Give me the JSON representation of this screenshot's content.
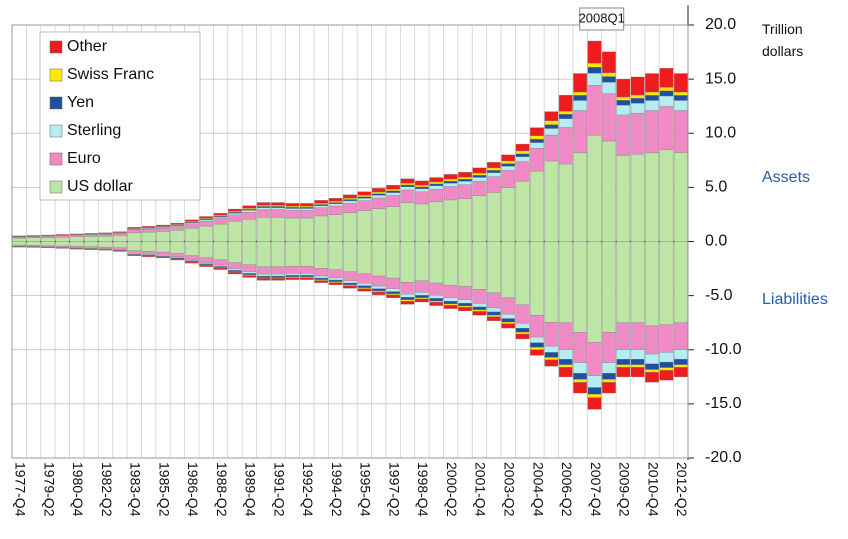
{
  "chart_data": {
    "type": "stacked-bar",
    "y_label": "Trillion dollars",
    "annotations": {
      "peak": "2008Q1",
      "assets": "Assets",
      "liabilities": "Liabilities"
    },
    "categories": [
      "1977-Q4",
      null,
      "1979-Q2",
      null,
      "1980-Q4",
      null,
      "1982-Q2",
      null,
      "1983-Q4",
      null,
      "1985-Q2",
      null,
      "1986-Q4",
      null,
      "1988-Q2",
      null,
      "1989-Q4",
      null,
      "1991-Q2",
      null,
      "1992-Q4",
      null,
      "1994-Q2",
      null,
      "1995-Q4",
      null,
      "1997-Q2",
      null,
      "1998-Q4",
      null,
      "2000-Q2",
      null,
      "2001-Q4",
      null,
      "2003-Q2",
      null,
      "2004-Q4",
      null,
      "2006-Q2",
      null,
      "2007-Q4",
      null,
      "2009-Q2",
      null,
      "2010-Q4",
      null,
      "2012-Q2"
    ],
    "series": [
      {
        "name": "US dollar",
        "color": "#bde5a6",
        "values": [
          0.31,
          0.34,
          0.37,
          0.4,
          0.43,
          0.47,
          0.5,
          0.56,
          0.81,
          0.87,
          0.93,
          1.05,
          1.24,
          1.43,
          1.61,
          1.86,
          2.05,
          2.23,
          2.23,
          2.17,
          2.17,
          2.36,
          2.48,
          2.67,
          2.85,
          3.04,
          3.22,
          3.6,
          3.47,
          3.66,
          3.84,
          3.97,
          4.22,
          4.53,
          4.96,
          5.58,
          6.51,
          7.44,
          7.16,
          8.22,
          9.81,
          9.28,
          7.95,
          8.06,
          8.22,
          8.48,
          8.22
        ],
        "liabilities": [
          -0.33,
          -0.36,
          -0.39,
          -0.42,
          -0.46,
          -0.49,
          -0.52,
          -0.59,
          -0.85,
          -0.91,
          -0.98,
          -1.11,
          -1.3,
          -1.5,
          -1.69,
          -1.95,
          -2.15,
          -2.34,
          -2.34,
          -2.28,
          -2.28,
          -2.47,
          -2.6,
          -2.8,
          -2.99,
          -3.19,
          -3.38,
          -3.77,
          -3.64,
          -3.84,
          -4.03,
          -4.16,
          -4.42,
          -4.75,
          -5.2,
          -5.85,
          -6.83,
          -7.48,
          -7.5,
          -8.4,
          -9.3,
          -8.4,
          -7.5,
          -7.5,
          -7.8,
          -7.68,
          -7.5
        ]
      },
      {
        "name": "Euro",
        "color": "#f08ac6",
        "values": [
          0.1,
          0.11,
          0.12,
          0.13,
          0.14,
          0.15,
          0.16,
          0.18,
          0.26,
          0.28,
          0.3,
          0.34,
          0.4,
          0.46,
          0.52,
          0.6,
          0.66,
          0.72,
          0.72,
          0.7,
          0.7,
          0.76,
          0.8,
          0.86,
          0.92,
          0.98,
          1.04,
          1.16,
          1.12,
          1.18,
          1.24,
          1.28,
          1.36,
          1.46,
          1.6,
          1.8,
          2.1,
          2.4,
          3.38,
          3.88,
          4.63,
          4.38,
          3.75,
          3.8,
          3.88,
          4.0,
          3.88
        ],
        "liabilities": [
          -0.1,
          -0.1,
          -0.11,
          -0.12,
          -0.13,
          -0.14,
          -0.15,
          -0.17,
          -0.25,
          -0.27,
          -0.29,
          -0.32,
          -0.38,
          -0.44,
          -0.49,
          -0.57,
          -0.63,
          -0.68,
          -0.68,
          -0.67,
          -0.67,
          -0.72,
          -0.76,
          -0.82,
          -0.87,
          -0.93,
          -0.99,
          -1.1,
          -1.06,
          -1.12,
          -1.18,
          -1.22,
          -1.29,
          -1.39,
          -1.52,
          -1.71,
          -2.0,
          -2.19,
          -2.5,
          -2.8,
          -3.1,
          -2.8,
          -2.5,
          -2.5,
          -2.6,
          -2.56,
          -2.5
        ]
      },
      {
        "name": "Sterling",
        "color": "#b4eef2",
        "values": [
          0.03,
          0.03,
          0.03,
          0.03,
          0.04,
          0.04,
          0.04,
          0.05,
          0.07,
          0.07,
          0.08,
          0.09,
          0.1,
          0.12,
          0.13,
          0.15,
          0.17,
          0.18,
          0.18,
          0.18,
          0.18,
          0.19,
          0.2,
          0.22,
          0.23,
          0.25,
          0.26,
          0.29,
          0.28,
          0.3,
          0.31,
          0.32,
          0.34,
          0.37,
          0.4,
          0.45,
          0.53,
          0.6,
          0.81,
          0.93,
          1.11,
          1.05,
          0.9,
          0.91,
          0.93,
          0.96,
          0.93
        ],
        "liabilities": [
          -0.03,
          -0.03,
          -0.03,
          -0.03,
          -0.04,
          -0.04,
          -0.04,
          -0.05,
          -0.07,
          -0.07,
          -0.08,
          -0.09,
          -0.1,
          -0.12,
          -0.13,
          -0.15,
          -0.17,
          -0.18,
          -0.18,
          -0.18,
          -0.18,
          -0.19,
          -0.2,
          -0.22,
          -0.23,
          -0.25,
          -0.26,
          -0.29,
          -0.28,
          -0.3,
          -0.31,
          -0.32,
          -0.34,
          -0.37,
          -0.4,
          -0.45,
          -0.53,
          -0.58,
          -0.88,
          -0.98,
          -1.09,
          -0.98,
          -0.88,
          -0.88,
          -0.91,
          -0.9,
          -0.88
        ]
      },
      {
        "name": "Yen",
        "color": "#1f4f9e",
        "values": [
          0.02,
          0.02,
          0.02,
          0.02,
          0.02,
          0.02,
          0.02,
          0.03,
          0.04,
          0.04,
          0.05,
          0.05,
          0.06,
          0.07,
          0.08,
          0.09,
          0.1,
          0.11,
          0.11,
          0.11,
          0.11,
          0.11,
          0.12,
          0.13,
          0.14,
          0.15,
          0.16,
          0.17,
          0.17,
          0.18,
          0.19,
          0.19,
          0.2,
          0.22,
          0.24,
          0.27,
          0.32,
          0.36,
          0.41,
          0.47,
          0.56,
          0.53,
          0.45,
          0.46,
          0.47,
          0.48,
          0.47
        ],
        "liabilities": [
          -0.02,
          -0.02,
          -0.02,
          -0.03,
          -0.03,
          -0.03,
          -0.03,
          -0.04,
          -0.05,
          -0.06,
          -0.06,
          -0.07,
          -0.08,
          -0.09,
          -0.1,
          -0.12,
          -0.13,
          -0.14,
          -0.14,
          -0.14,
          -0.14,
          -0.15,
          -0.16,
          -0.17,
          -0.18,
          -0.2,
          -0.21,
          -0.23,
          -0.22,
          -0.24,
          -0.25,
          -0.26,
          -0.27,
          -0.29,
          -0.32,
          -0.36,
          -0.42,
          -0.46,
          -0.5,
          -0.56,
          -0.62,
          -0.56,
          -0.5,
          -0.5,
          -0.52,
          -0.51,
          -0.5
        ]
      },
      {
        "name": "Swiss Franc",
        "color": "#ffe800",
        "values": [
          0.02,
          0.02,
          0.02,
          0.02,
          0.02,
          0.02,
          0.02,
          0.03,
          0.04,
          0.04,
          0.05,
          0.05,
          0.06,
          0.07,
          0.08,
          0.09,
          0.1,
          0.11,
          0.11,
          0.11,
          0.11,
          0.11,
          0.12,
          0.13,
          0.14,
          0.15,
          0.16,
          0.17,
          0.17,
          0.18,
          0.19,
          0.19,
          0.2,
          0.22,
          0.24,
          0.27,
          0.32,
          0.36,
          0.27,
          0.31,
          0.37,
          0.35,
          0.3,
          0.3,
          0.31,
          0.32,
          0.31
        ],
        "liabilities": [
          -0.01,
          -0.01,
          -0.01,
          -0.01,
          -0.01,
          -0.02,
          -0.02,
          -0.02,
          -0.03,
          -0.03,
          -0.03,
          -0.03,
          -0.04,
          -0.05,
          -0.05,
          -0.06,
          -0.07,
          -0.07,
          -0.07,
          -0.07,
          -0.07,
          -0.08,
          -0.08,
          -0.09,
          -0.09,
          -0.1,
          -0.1,
          -0.12,
          -0.11,
          -0.12,
          -0.12,
          -0.13,
          -0.14,
          -0.15,
          -0.16,
          -0.18,
          -0.21,
          -0.23,
          -0.25,
          -0.28,
          -0.31,
          -0.28,
          -0.25,
          -0.25,
          -0.26,
          -0.26,
          -0.25
        ]
      },
      {
        "name": "Other",
        "color": "#ee1c1c",
        "values": [
          0.04,
          0.04,
          0.04,
          0.05,
          0.05,
          0.05,
          0.06,
          0.06,
          0.09,
          0.1,
          0.11,
          0.12,
          0.14,
          0.16,
          0.18,
          0.21,
          0.23,
          0.25,
          0.25,
          0.25,
          0.25,
          0.27,
          0.28,
          0.3,
          0.32,
          0.34,
          0.36,
          0.41,
          0.39,
          0.41,
          0.43,
          0.45,
          0.48,
          0.51,
          0.56,
          0.63,
          0.74,
          0.84,
          1.49,
          1.71,
          2.04,
          1.93,
          1.65,
          1.67,
          1.71,
          1.76,
          1.71
        ],
        "liabilities": [
          -0.03,
          -0.03,
          -0.03,
          -0.03,
          -0.04,
          -0.04,
          -0.04,
          -0.05,
          -0.07,
          -0.07,
          -0.08,
          -0.09,
          -0.1,
          -0.12,
          -0.13,
          -0.15,
          -0.17,
          -0.18,
          -0.18,
          -0.18,
          -0.18,
          -0.19,
          -0.2,
          -0.22,
          -0.23,
          -0.25,
          -0.26,
          -0.29,
          -0.28,
          -0.3,
          -0.31,
          -0.32,
          -0.34,
          -0.37,
          -0.4,
          -0.45,
          -0.53,
          -0.58,
          -0.88,
          -0.98,
          -1.09,
          -0.98,
          -0.88,
          -0.88,
          -0.91,
          -0.9,
          -0.88
        ]
      }
    ],
    "ylim": [
      -20,
      20
    ],
    "yticks": [
      {
        "value": -20,
        "label": "-20.0"
      },
      {
        "value": -15,
        "label": "-15.0"
      },
      {
        "value": -10,
        "label": "-10.0"
      },
      {
        "value": -5,
        "label": "-5.0"
      },
      {
        "value": 0,
        "label": "0.0"
      },
      {
        "value": 5,
        "label": "5.0"
      },
      {
        "value": 10,
        "label": "10.0"
      },
      {
        "value": 15,
        "label": "15.0"
      },
      {
        "value": 20,
        "label": "20.0"
      }
    ],
    "grid": true,
    "legend": "top-left"
  }
}
